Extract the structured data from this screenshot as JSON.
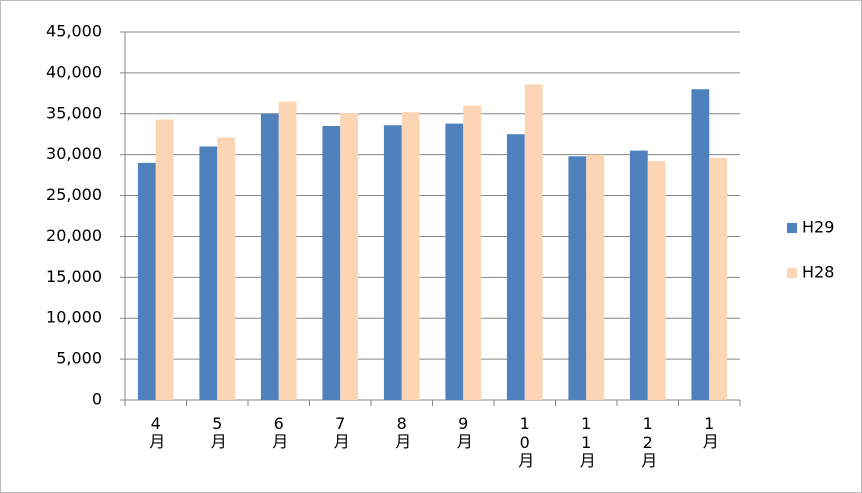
{
  "chart_data": {
    "type": "bar",
    "categories": [
      "4月",
      "5月",
      "6月",
      "7月",
      "8月",
      "9月",
      "10月",
      "11月",
      "12月",
      "1月"
    ],
    "series": [
      {
        "name": "H29",
        "color": "#4f81bd",
        "values": [
          29000,
          31000,
          35000,
          33500,
          33600,
          33800,
          32500,
          29800,
          30500,
          38000
        ]
      },
      {
        "name": "H28",
        "color": "#fcd5b5",
        "values": [
          34300,
          32100,
          36500,
          35100,
          35200,
          36000,
          38600,
          30000,
          29200,
          29600
        ]
      }
    ],
    "ylim": [
      0,
      45000
    ],
    "yticks": [
      0,
      {
        "value": 5000,
        "label": "5,000"
      },
      {
        "value": 10000,
        "label": "10,000"
      },
      {
        "value": 15000,
        "label": "15,000"
      },
      {
        "value": 20000,
        "label": "20,000"
      },
      {
        "value": 25000,
        "label": "25,000"
      },
      {
        "value": 30000,
        "label": "30,000"
      },
      {
        "value": 35000,
        "label": "35,000"
      },
      {
        "value": 40000,
        "label": "40,000"
      },
      {
        "value": 45000,
        "label": "45,000"
      }
    ],
    "grid": true,
    "legend": "right"
  }
}
